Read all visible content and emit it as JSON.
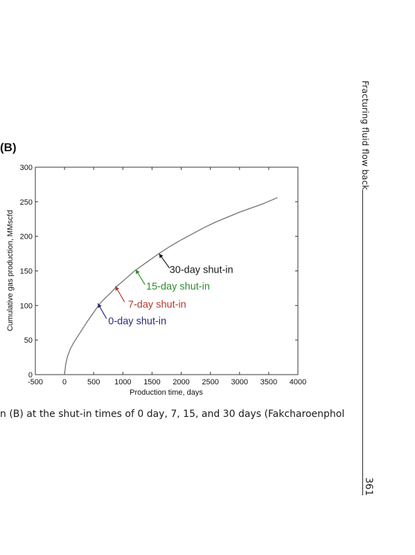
{
  "figure": {
    "panel_label": "(B)"
  },
  "caption_text": "n (B) at the shut-in times of 0 day, 7, 15, and 30 days (Fakcharoenphol",
  "running_head": "Fracturing fluid flow back",
  "page_number": "361",
  "chart_data": {
    "type": "line",
    "title": "",
    "xlabel": "Production time, days",
    "ylabel": "Cumulative gas production, MMscfd",
    "xlim": [
      -500,
      4000
    ],
    "ylim": [
      0,
      300
    ],
    "xticks": [
      "-500",
      "0",
      "500",
      "1000",
      "1500",
      "2000",
      "2500",
      "3000",
      "3500",
      "4000"
    ],
    "yticks": [
      "0",
      "50",
      "100",
      "150",
      "200",
      "250",
      "300"
    ],
    "grid": false,
    "series": [
      {
        "color": "#7a7a7a",
        "x": [
          0,
          20,
          50,
          100,
          150,
          200,
          300,
          400,
          500,
          600,
          700,
          800,
          900,
          1000,
          1200,
          1400,
          1600,
          1800,
          2000,
          2200,
          2400,
          2600,
          2800,
          3000,
          3200,
          3400,
          3650
        ],
        "y": [
          0,
          15,
          26,
          37,
          45,
          52,
          65,
          78,
          90,
          102,
          111,
          119,
          128,
          135,
          150,
          162,
          174,
          185,
          195,
          204,
          213,
          221,
          228,
          235,
          241,
          247,
          256
        ]
      }
    ],
    "annotations": [
      {
        "text": "30-day shut-in",
        "color": "#1a1a1a",
        "arrow_tip": [
          1620,
          175
        ],
        "arrow_tail": [
          1800,
          154
        ],
        "text_pos": [
          1800,
          152
        ]
      },
      {
        "text": "15-day shut-in",
        "color": "#2f8a2f",
        "arrow_tip": [
          1220,
          152
        ],
        "arrow_tail": [
          1380,
          130
        ],
        "text_pos": [
          1400,
          128
        ]
      },
      {
        "text": "7-day shut-in",
        "color": "#b03a2e",
        "arrow_tip": [
          870,
          128
        ],
        "arrow_tail": [
          1030,
          105
        ],
        "text_pos": [
          1090,
          102
        ]
      },
      {
        "text": "0-day shut-in",
        "color": "#2a2a7a",
        "arrow_tip": [
          570,
          103
        ],
        "arrow_tail": [
          720,
          81
        ],
        "text_pos": [
          750,
          78
        ]
      }
    ]
  }
}
